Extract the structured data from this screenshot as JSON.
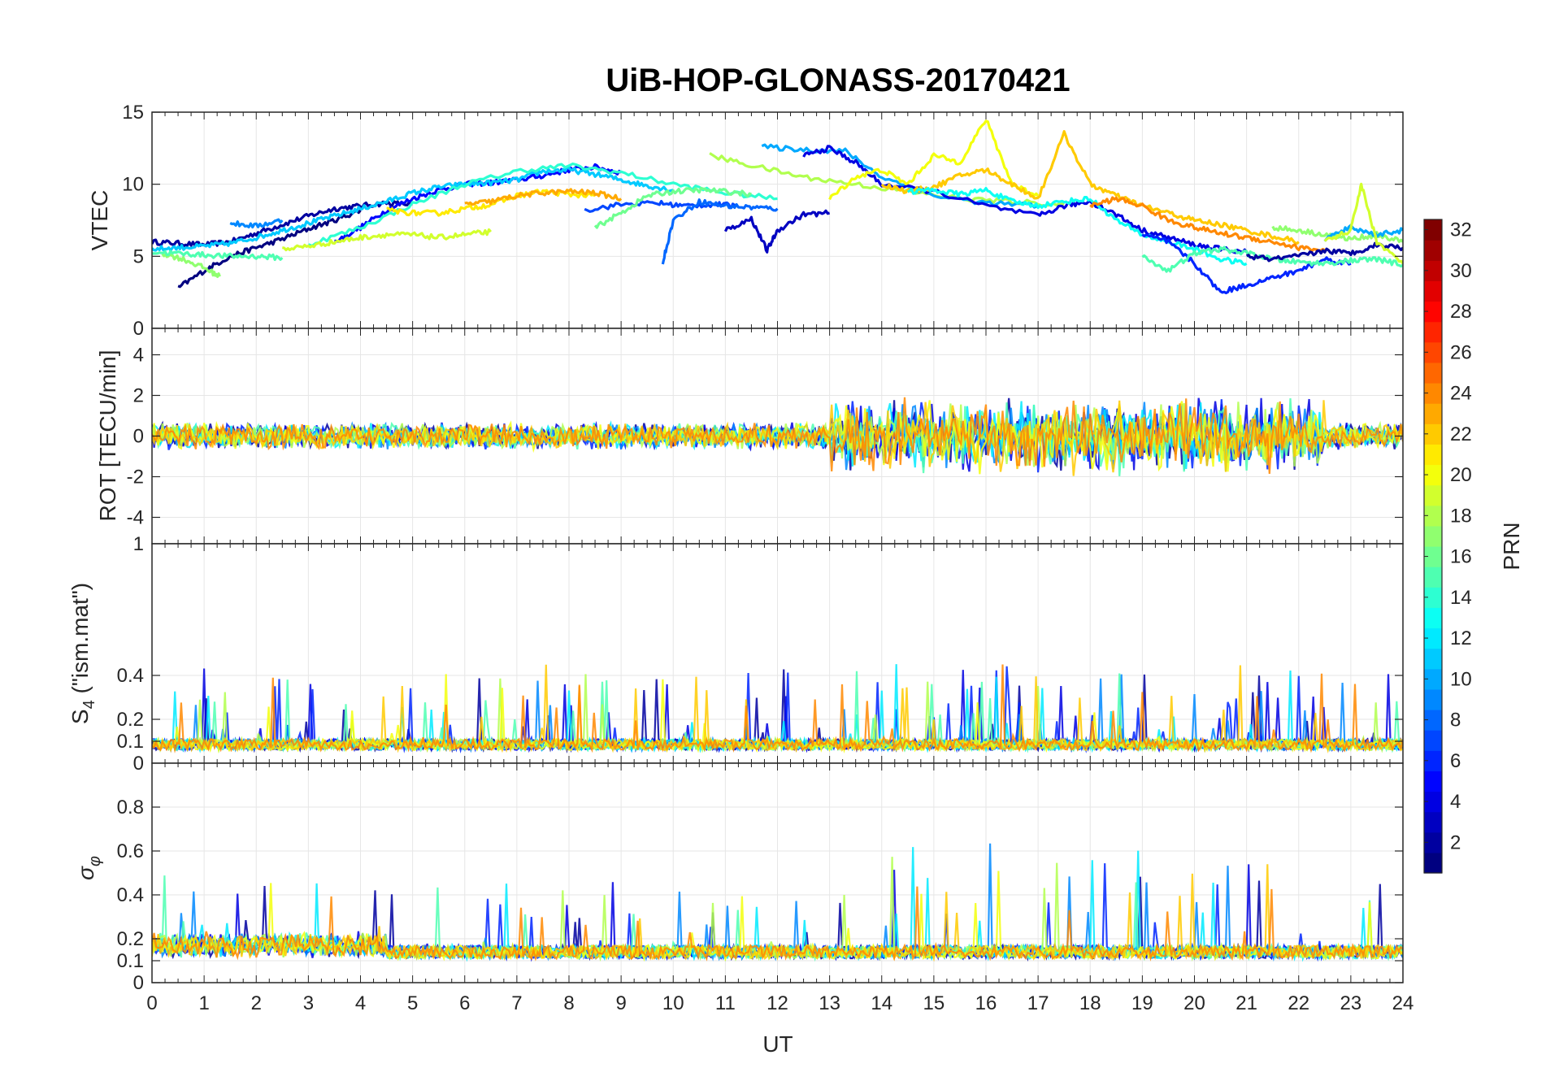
{
  "figure": {
    "title": "UiB-HOP-GLONASS-20170421",
    "xlabel": "UT",
    "x_ticks": [
      0,
      1,
      2,
      3,
      4,
      5,
      6,
      7,
      8,
      9,
      10,
      11,
      12,
      13,
      14,
      15,
      16,
      17,
      18,
      19,
      20,
      21,
      22,
      23,
      24
    ],
    "xlim": [
      0,
      24
    ]
  },
  "colorbar": {
    "label": "PRN",
    "ticks": [
      2,
      4,
      6,
      8,
      10,
      12,
      14,
      16,
      18,
      20,
      22,
      24,
      26,
      28,
      30,
      32
    ],
    "range": [
      1,
      32
    ],
    "colormap": "jet"
  },
  "chart_data": [
    {
      "type": "line",
      "panel": "vtec",
      "ylabel": "VTEC",
      "ylim": [
        0,
        15
      ],
      "y_ticks": [
        0,
        5,
        10,
        15
      ],
      "y_tick_labels": [
        "0",
        "5",
        "10",
        "15"
      ],
      "grid": true,
      "series": [
        {
          "prn": 2,
          "x": [
            0.0,
            0.5,
            1.0,
            1.5,
            2.0,
            2.5,
            3.0,
            3.5,
            4.0,
            4.5,
            5.0
          ],
          "y": [
            6.0,
            5.9,
            5.8,
            6.0,
            6.6,
            7.2,
            7.8,
            8.3,
            8.5,
            8.7,
            8.6
          ]
        },
        {
          "prn": 1,
          "x": [
            0.5,
            1.0,
            1.5,
            2.0,
            2.5,
            3.0,
            3.5,
            4.0
          ],
          "y": [
            2.8,
            4.0,
            5.0,
            5.6,
            6.2,
            6.9,
            7.5,
            8.2
          ]
        },
        {
          "prn": 5,
          "x": [
            3.5,
            4.0,
            4.5,
            5.0,
            5.5,
            6.0,
            6.5,
            7.0,
            7.5,
            8.0,
            8.5,
            9.0
          ],
          "y": [
            6.0,
            7.0,
            8.2,
            9.0,
            9.6,
            10.0,
            10.1,
            10.3,
            10.6,
            11.0,
            11.2,
            10.8
          ]
        },
        {
          "prn": 11,
          "x": [
            0.0,
            0.5,
            1.0,
            1.5,
            2.0,
            2.5,
            3.0,
            3.5,
            4.0,
            4.5,
            5.0,
            5.5,
            6.0,
            6.5,
            7.0,
            7.5,
            8.0,
            8.5,
            9.0,
            9.5,
            10.0
          ],
          "y": [
            5.5,
            5.6,
            5.7,
            5.9,
            6.3,
            6.8,
            7.3,
            7.8,
            8.3,
            8.8,
            9.4,
            9.8,
            10.0,
            10.1,
            10.3,
            10.9,
            11.0,
            10.7,
            10.3,
            9.9,
            9.6
          ]
        },
        {
          "prn": 9,
          "x": [
            1.5,
            2.0,
            2.5
          ],
          "y": [
            7.3,
            7.1,
            7.5
          ]
        },
        {
          "prn": 14,
          "x": [
            3.0,
            4.0,
            5.0,
            6.0,
            7.0,
            8.0,
            9.0,
            10.0,
            11.0,
            12.0
          ],
          "y": [
            5.8,
            7.0,
            8.6,
            10.0,
            10.9,
            11.3,
            10.8,
            10.0,
            9.4,
            9.0
          ]
        },
        {
          "prn": 17,
          "x": [
            0.2,
            0.6,
            1.0,
            1.3
          ],
          "y": [
            5.2,
            4.8,
            4.2,
            3.6
          ]
        },
        {
          "prn": 15,
          "x": [
            0.0,
            0.5,
            1.0,
            1.5,
            2.0,
            2.5
          ],
          "y": [
            5.3,
            5.2,
            5.1,
            5.0,
            5.0,
            4.9
          ]
        },
        {
          "prn": 19,
          "x": [
            2.5,
            3.0,
            3.5,
            4.0,
            4.5,
            5.0,
            5.5,
            6.0,
            6.5
          ],
          "y": [
            5.5,
            5.7,
            6.0,
            6.3,
            6.5,
            6.5,
            6.3,
            6.5,
            6.7
          ]
        },
        {
          "prn": 21,
          "x": [
            4.5,
            5.0,
            5.5,
            6.0,
            6.5,
            7.0,
            7.5,
            8.0,
            8.5
          ],
          "y": [
            8.2,
            8.0,
            8.0,
            8.3,
            8.6,
            9.2,
            9.5,
            9.3,
            9.2
          ]
        },
        {
          "prn": 23,
          "x": [
            6.0,
            6.5,
            7.0,
            7.5,
            8.0,
            8.5,
            9.0
          ],
          "y": [
            8.6,
            8.8,
            9.2,
            9.4,
            9.5,
            9.4,
            9.0
          ]
        },
        {
          "prn": 7,
          "x": [
            8.3,
            9.0,
            9.7,
            10.2,
            10.8,
            11.2
          ],
          "y": [
            8.2,
            8.6,
            8.7,
            8.5,
            8.6,
            8.5
          ]
        },
        {
          "prn": 8,
          "x": [
            9.8,
            10.0,
            10.5,
            11.0,
            11.5,
            12.0
          ],
          "y": [
            4.6,
            7.5,
            8.8,
            8.5,
            8.4,
            8.3
          ]
        },
        {
          "prn": 3,
          "x": [
            11.0,
            11.5,
            11.8,
            12.0,
            12.5,
            13.0
          ],
          "y": [
            6.8,
            7.6,
            5.4,
            6.8,
            7.9,
            8.0
          ]
        },
        {
          "prn": 16,
          "x": [
            8.5,
            9.0,
            9.5,
            10.0,
            10.5,
            11.0,
            11.5
          ],
          "y": [
            7.0,
            8.0,
            9.2,
            9.5,
            9.6,
            9.5,
            9.3
          ]
        },
        {
          "prn": 18,
          "x": [
            10.7,
            11.5,
            12.5,
            13.5,
            14.5,
            15.5,
            16.5,
            17.5
          ],
          "y": [
            12.0,
            11.3,
            10.5,
            10.0,
            9.5,
            9.0,
            8.8,
            8.6
          ]
        },
        {
          "prn": 10,
          "x": [
            11.7,
            12.5,
            13.3,
            14.0,
            15.0,
            16.0,
            17.0
          ],
          "y": [
            12.6,
            12.4,
            12.3,
            10.5,
            9.2,
            8.7,
            8.5
          ]
        },
        {
          "prn": 4,
          "x": [
            12.5,
            13.0,
            13.5,
            14.0,
            15.0,
            16.0,
            17.0,
            17.5,
            18.0,
            18.5,
            19.0,
            19.5,
            20.0,
            20.5,
            21.0
          ],
          "y": [
            12.0,
            12.5,
            11.5,
            10.0,
            9.5,
            8.5,
            7.8,
            8.5,
            8.8,
            7.9,
            6.8,
            6.3,
            5.8,
            5.5,
            5.3
          ]
        },
        {
          "prn": 20,
          "x": [
            13.0,
            13.5,
            14.0,
            14.5,
            15.0,
            15.5,
            16.0,
            16.5,
            17.0
          ],
          "y": [
            9.0,
            10.5,
            11.0,
            10.0,
            12.0,
            11.5,
            14.5,
            10.0,
            9.2
          ]
        },
        {
          "prn": 22,
          "x": [
            14.0,
            14.5,
            15.0,
            15.5,
            16.0,
            16.5,
            17.0,
            17.5,
            18.0,
            18.5,
            19.0,
            19.5,
            20.0,
            20.5,
            21.0,
            21.5,
            22.0
          ],
          "y": [
            10.0,
            9.5,
            9.8,
            10.6,
            11.0,
            10.0,
            9.0,
            13.5,
            10.0,
            9.2,
            8.5,
            8.0,
            7.5,
            7.2,
            6.8,
            6.4,
            6.0
          ]
        },
        {
          "prn": 13,
          "x": [
            14.5,
            15.0,
            15.5,
            16.0,
            16.5,
            17.0,
            17.5,
            18.0,
            18.5,
            19.0,
            19.5,
            20.0,
            20.5,
            21.0
          ],
          "y": [
            9.5,
            9.6,
            9.3,
            9.6,
            8.8,
            8.5,
            8.8,
            9.0,
            7.5,
            6.5,
            6.0,
            5.5,
            4.8,
            4.5
          ]
        },
        {
          "prn": 24,
          "x": [
            18.0,
            18.5,
            19.0,
            19.5,
            20.0,
            20.5,
            21.0,
            21.5,
            22.0,
            22.5
          ],
          "y": [
            8.5,
            9.0,
            8.5,
            7.5,
            7.0,
            6.6,
            6.3,
            6.0,
            5.6,
            5.4
          ]
        },
        {
          "prn": 6,
          "x": [
            19.0,
            19.5,
            20.0,
            20.5,
            21.0,
            21.5,
            22.0,
            22.5,
            23.0
          ],
          "y": [
            6.5,
            6.0,
            4.5,
            2.5,
            3.0,
            3.5,
            4.0,
            4.8,
            4.5
          ]
        },
        {
          "prn": 15,
          "x": [
            19.0,
            19.5,
            20.0,
            20.5,
            21.0,
            21.5,
            22.0,
            22.5,
            23.0,
            23.5,
            24.0
          ],
          "y": [
            5.0,
            4.0,
            5.2,
            5.5,
            5.2,
            4.8,
            4.6,
            4.5,
            4.7,
            4.8,
            4.4
          ]
        },
        {
          "prn": 2,
          "x": [
            21.0,
            21.5,
            22.0,
            22.5,
            23.0,
            23.5,
            24.0
          ],
          "y": [
            5.0,
            4.8,
            5.0,
            5.4,
            5.2,
            5.8,
            5.6
          ]
        },
        {
          "prn": 17,
          "x": [
            21.5,
            22.0,
            22.5,
            23.0,
            23.5,
            24.0
          ],
          "y": [
            7.0,
            6.8,
            6.5,
            6.2,
            6.5,
            6.0
          ]
        },
        {
          "prn": 10,
          "x": [
            22.5,
            23.0,
            23.5,
            24.0
          ],
          "y": [
            6.2,
            7.0,
            6.5,
            6.8
          ]
        },
        {
          "prn": 19,
          "x": [
            22.5,
            23.0,
            23.2,
            23.5,
            24.0
          ],
          "y": [
            6.0,
            6.8,
            10.0,
            6.0,
            4.5
          ]
        }
      ]
    },
    {
      "type": "line",
      "panel": "rot",
      "ylabel": "ROT [TECU/min]",
      "ylim": [
        -5.3,
        5.3
      ],
      "y_ticks": [
        -4,
        -2,
        0,
        2,
        4
      ],
      "y_tick_labels": [
        "-4",
        "-2",
        "0",
        "2",
        "4"
      ],
      "grid": true
    },
    {
      "type": "line",
      "panel": "s4",
      "ylabel": "S4 (\"ism.mat\")",
      "ylabel_main": "S",
      "ylabel_sub": "4",
      "ylabel_rest": "  (\"ism.mat\")",
      "ylim": [
        0,
        1
      ],
      "y_ticks": [
        0.1,
        0.2,
        0.4
      ],
      "y_tick_labels": [
        "0.1",
        "0.2",
        "0.4"
      ],
      "top_tick_label": "1",
      "grid": true
    },
    {
      "type": "line",
      "panel": "sigma_phi",
      "ylabel": "σφ",
      "ylabel_main": "σ",
      "ylabel_sub": "φ",
      "ylim": [
        0,
        1
      ],
      "y_ticks": [
        0,
        0.1,
        0.2,
        0.4,
        0.6,
        0.8
      ],
      "y_tick_labels": [
        "0",
        "0.1",
        "0.2",
        "0.4",
        "0.6",
        "0.8"
      ],
      "top_tick_label": "0",
      "grid": true
    }
  ]
}
